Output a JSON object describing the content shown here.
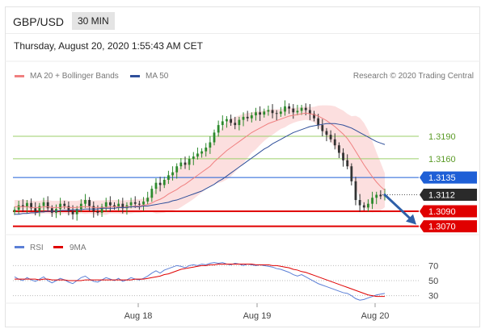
{
  "header": {
    "pair": "GBP/USD",
    "timeframe": "30 MIN"
  },
  "datetime": "Thursday, August 20, 2020 1:55:43 AM CET",
  "legend": {
    "ma20": "MA 20 + Bollinger Bands",
    "ma50": "MA 50",
    "credit": "Research © 2020 Trading Central",
    "rsi": "RSI",
    "ma9": "9MA"
  },
  "colors": {
    "ma20": "#f08080",
    "ma50": "#2f4f9a",
    "band": "#fbd9d9",
    "resistance_green": "#9bcf6a",
    "blue_level": "#1e5fd6",
    "red_level": "#e00000",
    "current": "#2a2a2a",
    "rsi": "#5b7fd6",
    "rsi_ma": "#e00000",
    "arrow": "#2e5fa8"
  },
  "chart_data": [
    {
      "type": "line",
      "title": "GBP/USD 30 MIN",
      "x_ticks": [
        "Aug 18",
        "Aug 19",
        "Aug 20"
      ],
      "ylim": [
        1.3062,
        1.326
      ],
      "levels": [
        {
          "label": "1.3190",
          "value": 1.319,
          "style": "green"
        },
        {
          "label": "1.3160",
          "value": 1.316,
          "style": "green"
        },
        {
          "label": "1.3135",
          "value": 1.3135,
          "style": "blue"
        },
        {
          "label": "1.3112",
          "value": 1.3112,
          "style": "current"
        },
        {
          "label": "1.3090",
          "value": 1.309,
          "style": "red"
        },
        {
          "label": "1.3070",
          "value": 1.307,
          "style": "red"
        }
      ],
      "series": [
        {
          "name": "GBP/USD",
          "values": [
            1.3092,
            1.3098,
            1.3096,
            1.3101,
            1.3094,
            1.309,
            1.3097,
            1.3102,
            1.3094,
            1.3088,
            1.3093,
            1.31,
            1.3097,
            1.309,
            1.3086,
            1.3093,
            1.31,
            1.3105,
            1.3097,
            1.309,
            1.3088,
            1.3096,
            1.3102,
            1.3098,
            1.3096,
            1.31,
            1.3094,
            1.3098,
            1.3102,
            1.31,
            1.3099,
            1.3103,
            1.3108,
            1.312,
            1.3128,
            1.3125,
            1.3132,
            1.3138,
            1.3142,
            1.315,
            1.3155,
            1.3152,
            1.316,
            1.3163,
            1.3167,
            1.317,
            1.3175,
            1.3182,
            1.3195,
            1.3205,
            1.321,
            1.3213,
            1.3208,
            1.3205,
            1.3212,
            1.3216,
            1.3214,
            1.3218,
            1.3222,
            1.3219,
            1.3223,
            1.3225,
            1.3221,
            1.322,
            1.3223,
            1.323,
            1.3227,
            1.3222,
            1.3224,
            1.3228,
            1.3225,
            1.322,
            1.3214,
            1.3205,
            1.3197,
            1.3192,
            1.3186,
            1.3178,
            1.3168,
            1.3158,
            1.315,
            1.313,
            1.3105,
            1.3098,
            1.3095,
            1.31,
            1.3108,
            1.3112,
            1.311,
            1.3112
          ]
        },
        {
          "name": "MA 20",
          "values": [
            1.3096,
            1.3096,
            1.3096,
            1.3096,
            1.3095,
            1.3095,
            1.3095,
            1.3096,
            1.3096,
            1.3095,
            1.3095,
            1.3095,
            1.3096,
            1.3095,
            1.3095,
            1.3095,
            1.3096,
            1.3096,
            1.3096,
            1.3095,
            1.3095,
            1.3095,
            1.3095,
            1.3096,
            1.3096,
            1.3096,
            1.3095,
            1.3096,
            1.3096,
            1.3097,
            1.3097,
            1.3098,
            1.3099,
            1.3101,
            1.3104,
            1.3106,
            1.3109,
            1.3113,
            1.3116,
            1.3119,
            1.3123,
            1.3126,
            1.313,
            1.3134,
            1.3138,
            1.3142,
            1.3146,
            1.315,
            1.3156,
            1.3161,
            1.3166,
            1.3171,
            1.3175,
            1.3179,
            1.3183,
            1.3187,
            1.3191,
            1.3195,
            1.3198,
            1.3201,
            1.3204,
            1.3207,
            1.3209,
            1.3211,
            1.3213,
            1.3215,
            1.3217,
            1.3218,
            1.3219,
            1.322,
            1.3221,
            1.322,
            1.3219,
            1.3217,
            1.3214,
            1.3211,
            1.3207,
            1.3203,
            1.3198,
            1.3193,
            1.3187,
            1.3179,
            1.317,
            1.3161,
            1.3152,
            1.3144,
            1.3136,
            1.3129,
            1.3123,
            1.3118
          ]
        },
        {
          "name": "MA 50",
          "values": [
            1.3086,
            1.3086,
            1.3087,
            1.3087,
            1.3088,
            1.3088,
            1.3089,
            1.3089,
            1.309,
            1.309,
            1.309,
            1.3091,
            1.3091,
            1.3091,
            1.3092,
            1.3092,
            1.3092,
            1.3093,
            1.3093,
            1.3093,
            1.3093,
            1.3094,
            1.3094,
            1.3094,
            1.3094,
            1.3095,
            1.3095,
            1.3095,
            1.3096,
            1.3096,
            1.3096,
            1.3097,
            1.3097,
            1.3098,
            1.3099,
            1.31,
            1.3101,
            1.3102,
            1.3104,
            1.3105,
            1.3107,
            1.3109,
            1.3111,
            1.3113,
            1.3115,
            1.3117,
            1.312,
            1.3123,
            1.3126,
            1.313,
            1.3133,
            1.3137,
            1.3141,
            1.3145,
            1.3149,
            1.3153,
            1.3157,
            1.3161,
            1.3165,
            1.3169,
            1.3173,
            1.3176,
            1.318,
            1.3183,
            1.3186,
            1.3189,
            1.3192,
            1.3195,
            1.3197,
            1.3199,
            1.3201,
            1.3203,
            1.3204,
            1.3205,
            1.3206,
            1.3207,
            1.3207,
            1.3207,
            1.3206,
            1.3205,
            1.3203,
            1.3201,
            1.3198,
            1.3195,
            1.3192,
            1.3189,
            1.3186,
            1.3183,
            1.3181,
            1.3179
          ]
        }
      ]
    },
    {
      "type": "line",
      "title": "RSI",
      "x_ticks": [
        "Aug 18",
        "Aug 19",
        "Aug 20"
      ],
      "ylim": [
        20,
        80
      ],
      "y_ticks": [
        "70",
        "50",
        "30"
      ],
      "series": [
        {
          "name": "RSI",
          "values": [
            55,
            52,
            50,
            54,
            51,
            49,
            52,
            55,
            50,
            47,
            50,
            53,
            51,
            48,
            46,
            50,
            54,
            56,
            52,
            49,
            48,
            51,
            54,
            52,
            50,
            53,
            49,
            51,
            54,
            52,
            51,
            53,
            56,
            60,
            63,
            60,
            64,
            66,
            68,
            70,
            69,
            67,
            70,
            71,
            70,
            72,
            71,
            73,
            74,
            73,
            74,
            72,
            71,
            73,
            72,
            70,
            72,
            71,
            70,
            71,
            70,
            69,
            68,
            66,
            65,
            63,
            61,
            58,
            56,
            58,
            55,
            52,
            49,
            46,
            44,
            42,
            40,
            38,
            36,
            34,
            33,
            30,
            26,
            24,
            25,
            27,
            29,
            31,
            32,
            33
          ]
        },
        {
          "name": "9MA",
          "values": [
            52,
            52,
            52,
            52,
            52,
            52,
            51,
            52,
            52,
            51,
            51,
            51,
            51,
            50,
            50,
            50,
            50,
            51,
            51,
            51,
            51,
            51,
            51,
            51,
            51,
            51,
            51,
            51,
            51,
            52,
            52,
            52,
            53,
            54,
            55,
            56,
            58,
            59,
            61,
            63,
            65,
            66,
            67,
            68,
            69,
            70,
            70,
            71,
            71,
            72,
            72,
            72,
            72,
            72,
            72,
            72,
            72,
            72,
            71,
            71,
            71,
            71,
            70,
            70,
            69,
            68,
            67,
            65,
            64,
            62,
            61,
            59,
            57,
            55,
            53,
            51,
            49,
            47,
            45,
            43,
            41,
            39,
            37,
            35,
            33,
            31,
            30,
            29,
            29,
            29
          ]
        }
      ]
    }
  ]
}
